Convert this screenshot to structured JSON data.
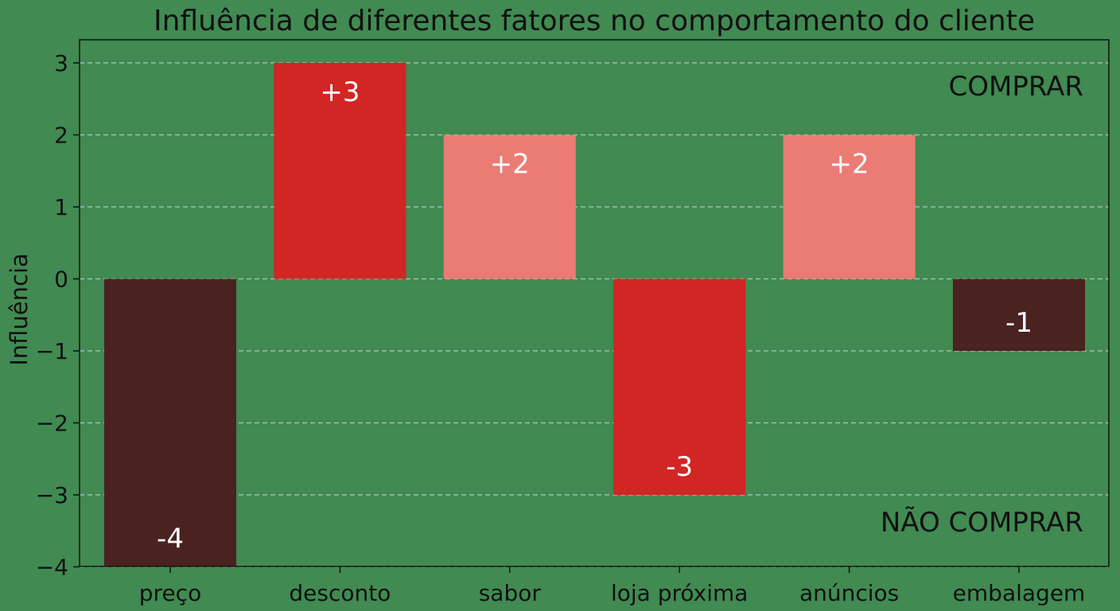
{
  "chart_data": {
    "type": "bar",
    "title": "Influência de diferentes fatores no comportamento do cliente",
    "xlabel": "",
    "ylabel": "Influência",
    "categories": [
      "preço",
      "desconto",
      "sabor",
      "loja próxima",
      "anúncios",
      "embalagem"
    ],
    "values": [
      -4,
      3,
      2,
      -3,
      2,
      -1
    ],
    "data_labels": [
      "-4",
      "+3",
      "+2",
      "-3",
      "+2",
      "-1"
    ],
    "bar_colors": [
      "#4a2220",
      "#d12624",
      "#eb7b75",
      "#d12624",
      "#eb7b75",
      "#4a2220"
    ],
    "ylim": [
      -4,
      3
    ],
    "yticks": [
      3,
      2,
      1,
      0,
      -1,
      -2,
      -3,
      -4
    ],
    "ytick_labels": [
      "3",
      "2",
      "1",
      "0",
      "−1",
      "−2",
      "−3",
      "−4"
    ],
    "grid": "horizontal dashed",
    "annotations": {
      "top_right": "COMPRAR",
      "bottom_right": "NÃO COMPRAR"
    },
    "background_color": "#418a52"
  }
}
